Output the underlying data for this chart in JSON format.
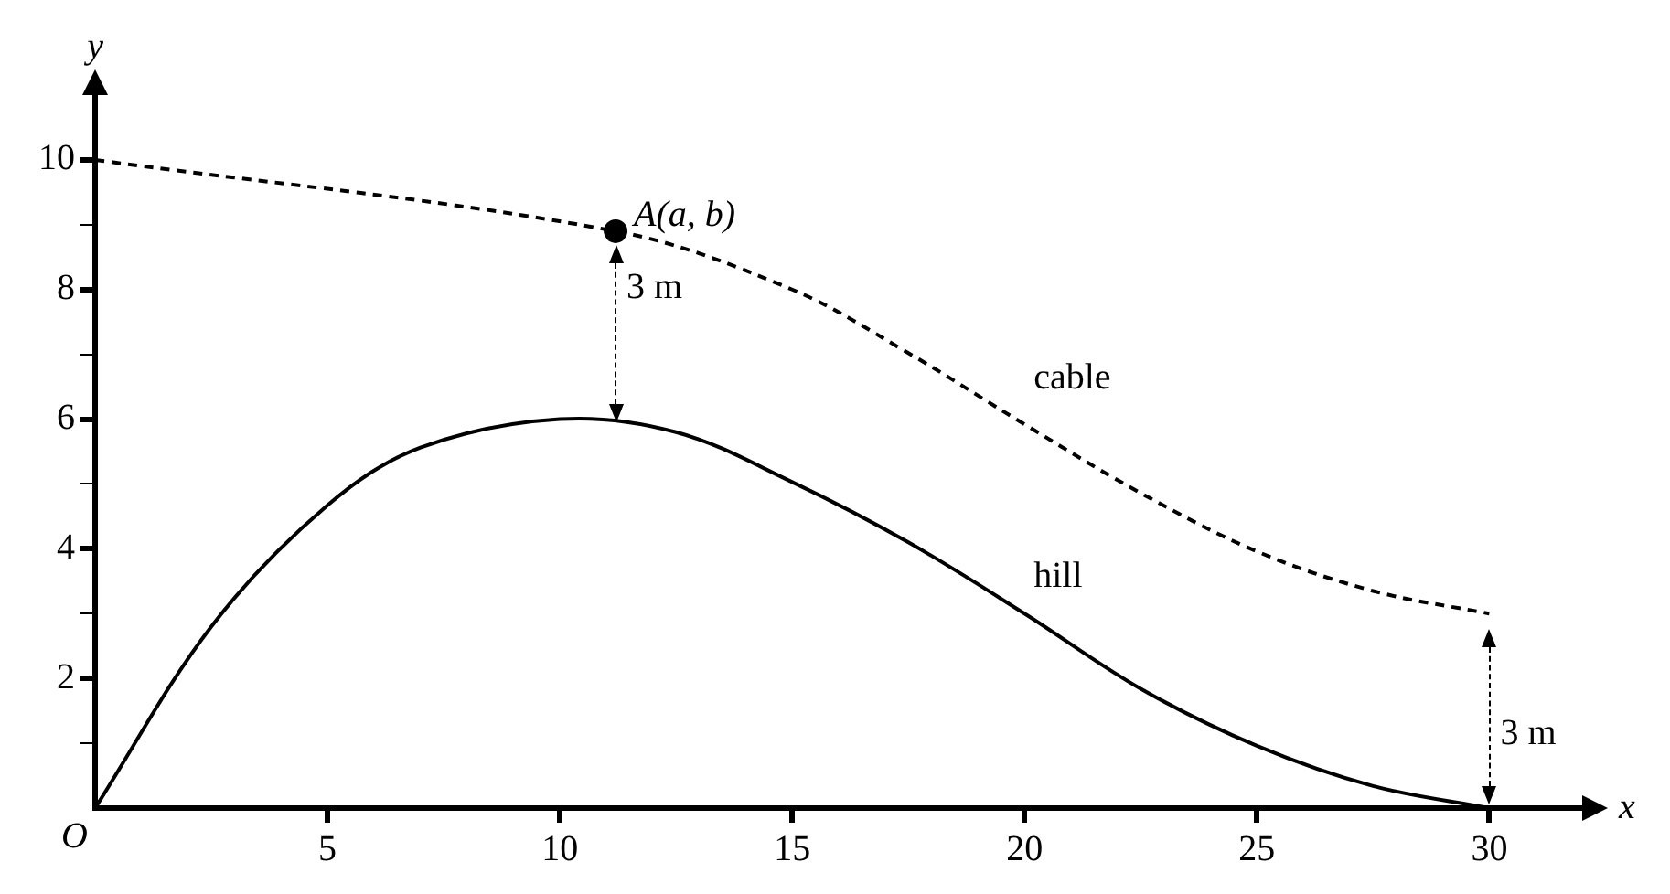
{
  "chart_data": {
    "type": "line",
    "xlabel": "x",
    "ylabel": "y",
    "xlim": [
      0,
      32
    ],
    "ylim": [
      0,
      11
    ],
    "xticks": [
      5,
      10,
      15,
      20,
      25,
      30
    ],
    "yticks": [
      {
        "value": 1,
        "label": null
      },
      2,
      {
        "value": 3,
        "label": null
      },
      4,
      {
        "value": 5,
        "label": null
      },
      6,
      {
        "value": 7,
        "label": null
      },
      8,
      {
        "value": 9,
        "label": null
      },
      10
    ],
    "grid": false,
    "legend": false,
    "series": [
      {
        "color": "#000000",
        "line_style": "solid",
        "marker": "none",
        "x": [
          0,
          2.5,
          5,
          7,
          10,
          12.5,
          15,
          17.5,
          20,
          22.5,
          25,
          27.5,
          30
        ],
        "values": [
          0,
          2.8,
          4.67,
          5.56,
          6,
          5.8,
          5.03,
          4.1,
          3.0,
          1.84,
          0.96,
          0.34,
          0
        ]
      },
      {
        "color": "#000000",
        "line_style": "dashed",
        "marker": "none",
        "x": [
          0,
          11.2,
          15,
          17.5,
          20,
          22.5,
          25,
          27.5,
          30
        ],
        "values": [
          10,
          8.9,
          8.0,
          7.02,
          5.92,
          4.86,
          3.96,
          3.35,
          3.0
        ]
      },
      {
        "type": "scatter",
        "color": "#000000",
        "marker": "circle",
        "x": [
          11.2
        ],
        "values": [
          8.9
        ]
      }
    ],
    "annotations": [
      {
        "text": "A(a, b)",
        "x": 11.2,
        "y": 8.9
      },
      "3 m",
      "cable",
      "hill",
      "3 m",
      "O"
    ]
  }
}
